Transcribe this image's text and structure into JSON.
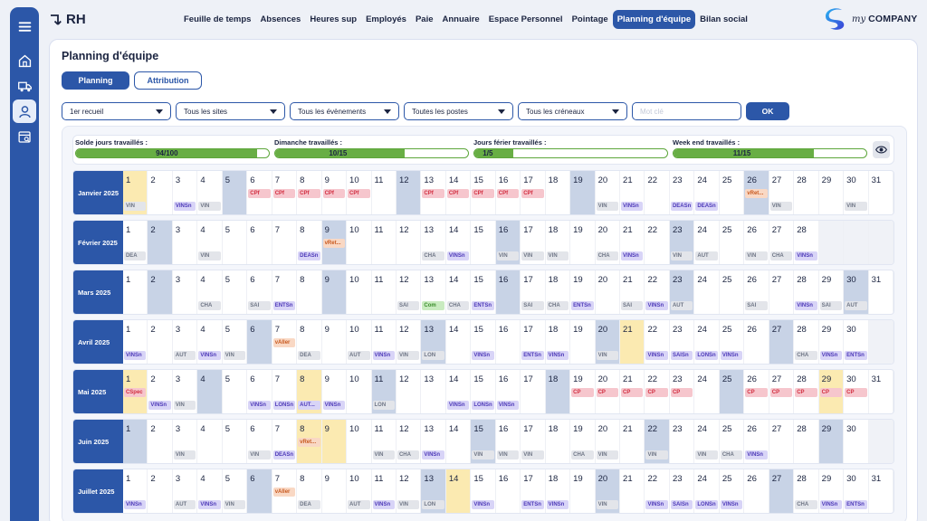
{
  "app": {
    "name": "RH"
  },
  "nav": [
    "Feuille de temps",
    "Absences",
    "Heures sup",
    "Employés",
    "Paie",
    "Annuaire",
    "Espace Personnel",
    "Pointage",
    "Planning d'équipe",
    "Bilan social"
  ],
  "nav_active": 8,
  "logo": {
    "my": "my",
    "company": "COMPANY"
  },
  "sidebar_icons": [
    "menu-icon",
    "home-icon",
    "truck-icon",
    "user-icon",
    "calendar-search-icon"
  ],
  "page": {
    "title": "Planning d'équipe"
  },
  "tabs": [
    {
      "label": "Planning",
      "active": true
    },
    {
      "label": "Attribution",
      "active": false
    }
  ],
  "filters": {
    "selects": [
      "1er recueil",
      "Tous les sites",
      "Tous les évènements",
      "Toutes les postes",
      "Tous les créneaux"
    ],
    "text_placeholder": "Mot clé",
    "ok_label": "OK"
  },
  "stats": [
    {
      "label": "Solde jours travaillés :",
      "value": "94/100",
      "fraction": 0.94
    },
    {
      "label": "Dimanche travaillés :",
      "value": "10/15",
      "fraction": 0.67
    },
    {
      "label": "Jours férier travaillés :",
      "value": "1/5",
      "fraction": 0.2
    },
    {
      "label": "Week end travaillés :",
      "value": "11/15",
      "fraction": 0.73
    }
  ],
  "badge_colors": {
    "cpf": "#d12c3e",
    "vret": "#c8591f",
    "grey": "#6e7585",
    "purple": "#4c38b8",
    "green": "#3a8d2b"
  },
  "months": [
    {
      "name": "Janvier 2025",
      "days": 31,
      "weekend": [
        5,
        12,
        19,
        26
      ],
      "holiday": [
        1
      ],
      "mid": [
        [
          6,
          "CPf",
          "cpf"
        ],
        [
          7,
          "CPf",
          "cpf"
        ],
        [
          8,
          "CPf",
          "cpf"
        ],
        [
          9,
          "CPf",
          "cpf"
        ],
        [
          10,
          "CPf",
          "cpf"
        ],
        [
          13,
          "CPf",
          "cpf"
        ],
        [
          14,
          "CPf",
          "cpf"
        ],
        [
          15,
          "CPf",
          "cpf"
        ],
        [
          16,
          "CPf",
          "cpf"
        ],
        [
          17,
          "CPf",
          "cpf"
        ],
        [
          26,
          "vRet...",
          "vret"
        ]
      ],
      "bot": [
        [
          1,
          "VIN",
          "grey"
        ],
        [
          3,
          "VINSn",
          "purple"
        ],
        [
          4,
          "VIN",
          "grey"
        ],
        [
          20,
          "VIN",
          "grey"
        ],
        [
          21,
          "VINSn",
          "purple"
        ],
        [
          23,
          "DEASn",
          "purple"
        ],
        [
          24,
          "DEASn",
          "purple"
        ],
        [
          27,
          "VIN",
          "grey"
        ],
        [
          30,
          "VIN",
          "grey"
        ]
      ]
    },
    {
      "name": "Février 2025",
      "days": 28,
      "weekend": [
        2,
        9,
        16,
        23
      ],
      "holiday": [],
      "mid": [
        [
          9,
          "vRet...",
          "vret"
        ]
      ],
      "bot": [
        [
          1,
          "DEA",
          "grey"
        ],
        [
          4,
          "VIN",
          "grey"
        ],
        [
          8,
          "DEASn",
          "purple"
        ],
        [
          13,
          "CHA",
          "grey"
        ],
        [
          14,
          "VINSn",
          "purple"
        ],
        [
          16,
          "VIN",
          "grey"
        ],
        [
          17,
          "VIN",
          "grey"
        ],
        [
          18,
          "VIN",
          "grey"
        ],
        [
          20,
          "CHA",
          "grey"
        ],
        [
          21,
          "VINSn",
          "purple"
        ],
        [
          23,
          "VIN",
          "grey"
        ],
        [
          24,
          "AUT",
          "grey"
        ],
        [
          26,
          "VIN",
          "grey"
        ],
        [
          27,
          "CHA",
          "grey"
        ],
        [
          28,
          "VINSn",
          "purple"
        ]
      ]
    },
    {
      "name": "Mars 2025",
      "days": 31,
      "weekend": [
        2,
        9,
        16,
        23,
        30
      ],
      "holiday": [],
      "mid": [],
      "bot": [
        [
          4,
          "CHA",
          "grey"
        ],
        [
          6,
          "SAI",
          "grey"
        ],
        [
          7,
          "ENTSn",
          "purple"
        ],
        [
          12,
          "SAI",
          "grey"
        ],
        [
          13,
          "Com",
          "green"
        ],
        [
          14,
          "CHA",
          "grey"
        ],
        [
          15,
          "ENTSn",
          "purple"
        ],
        [
          17,
          "SAI",
          "grey"
        ],
        [
          18,
          "CHA",
          "grey"
        ],
        [
          19,
          "ENTSn",
          "purple"
        ],
        [
          21,
          "SAI",
          "grey"
        ],
        [
          22,
          "VINSn",
          "purple"
        ],
        [
          23,
          "AUT",
          "grey"
        ],
        [
          26,
          "SAI",
          "grey"
        ],
        [
          28,
          "VINSn",
          "purple"
        ],
        [
          29,
          "SAI",
          "grey"
        ],
        [
          30,
          "AUT",
          "grey"
        ]
      ]
    },
    {
      "name": "Avril 2025",
      "days": 30,
      "weekend": [
        6,
        13,
        20,
        27
      ],
      "holiday": [
        21
      ],
      "mid": [
        [
          7,
          "vAller",
          "vret"
        ]
      ],
      "bot": [
        [
          1,
          "VINSn",
          "purple"
        ],
        [
          3,
          "AUT",
          "grey"
        ],
        [
          4,
          "VINSn",
          "purple"
        ],
        [
          5,
          "VIN",
          "grey"
        ],
        [
          8,
          "DEA",
          "grey"
        ],
        [
          10,
          "AUT",
          "grey"
        ],
        [
          11,
          "VINSn",
          "purple"
        ],
        [
          12,
          "VIN",
          "grey"
        ],
        [
          13,
          "LON",
          "grey"
        ],
        [
          15,
          "VINSn",
          "purple"
        ],
        [
          17,
          "ENTSn",
          "purple"
        ],
        [
          18,
          "VINSn",
          "purple"
        ],
        [
          20,
          "VIN",
          "grey"
        ],
        [
          22,
          "VINSn",
          "purple"
        ],
        [
          23,
          "SAISn",
          "purple"
        ],
        [
          24,
          "LONSn",
          "purple"
        ],
        [
          25,
          "VINSn",
          "purple"
        ],
        [
          28,
          "CHA",
          "grey"
        ],
        [
          29,
          "VINSn",
          "purple"
        ],
        [
          30,
          "ENTSn",
          "purple"
        ]
      ]
    },
    {
      "name": "Mai 2025",
      "days": 31,
      "weekend": [
        4,
        11,
        18,
        25
      ],
      "holiday": [
        1,
        8,
        29
      ],
      "mid": [
        [
          1,
          "CSpec",
          "cpf"
        ],
        [
          19,
          "CP",
          "cpf"
        ],
        [
          20,
          "CP",
          "cpf"
        ],
        [
          21,
          "CP",
          "cpf"
        ],
        [
          22,
          "CP",
          "cpf"
        ],
        [
          23,
          "CP",
          "cpf"
        ],
        [
          26,
          "CP",
          "cpf"
        ],
        [
          27,
          "CP",
          "cpf"
        ],
        [
          28,
          "CP",
          "cpf"
        ],
        [
          29,
          "CP",
          "cpf"
        ],
        [
          30,
          "CP",
          "cpf"
        ]
      ],
      "bot": [
        [
          2,
          "VINSn",
          "purple"
        ],
        [
          3,
          "VIN",
          "grey"
        ],
        [
          6,
          "VINSn",
          "purple"
        ],
        [
          7,
          "LONSn",
          "purple"
        ],
        [
          8,
          "AUT...",
          "purple"
        ],
        [
          9,
          "VINSn",
          "purple"
        ],
        [
          11,
          "LON",
          "grey"
        ],
        [
          14,
          "VINSn",
          "purple"
        ],
        [
          15,
          "LONSn",
          "purple"
        ],
        [
          16,
          "VINSn",
          "purple"
        ]
      ]
    },
    {
      "name": "Juin 2025",
      "days": 30,
      "weekend": [
        1,
        15,
        22,
        29
      ],
      "holiday": [
        8,
        9
      ],
      "mid": [
        [
          8,
          "vRet...",
          "vret"
        ]
      ],
      "bot": [
        [
          3,
          "VIN",
          "grey"
        ],
        [
          6,
          "VIN",
          "grey"
        ],
        [
          7,
          "DEASn",
          "purple"
        ],
        [
          11,
          "VIN",
          "grey"
        ],
        [
          12,
          "CHA",
          "grey"
        ],
        [
          13,
          "VINSn",
          "purple"
        ],
        [
          15,
          "VIN",
          "grey"
        ],
        [
          16,
          "VIN",
          "grey"
        ],
        [
          17,
          "VIN",
          "grey"
        ],
        [
          19,
          "CHA",
          "grey"
        ],
        [
          20,
          "VIN",
          "grey"
        ],
        [
          22,
          "VIN",
          "grey"
        ],
        [
          24,
          "VIN",
          "grey"
        ],
        [
          25,
          "CHA",
          "grey"
        ],
        [
          26,
          "VINSn",
          "purple"
        ]
      ]
    },
    {
      "name": "Juillet 2025",
      "days": 31,
      "weekend": [
        6,
        13,
        20,
        27
      ],
      "holiday": [
        14
      ],
      "mid": [
        [
          7,
          "vAller",
          "vret"
        ]
      ],
      "bot": [
        [
          1,
          "VINSn",
          "purple"
        ],
        [
          3,
          "AUT",
          "grey"
        ],
        [
          4,
          "VINSn",
          "purple"
        ],
        [
          5,
          "VIN",
          "grey"
        ],
        [
          8,
          "DEA",
          "grey"
        ],
        [
          10,
          "AUT",
          "grey"
        ],
        [
          11,
          "VINSn",
          "purple"
        ],
        [
          12,
          "VIN",
          "grey"
        ],
        [
          13,
          "LON",
          "grey"
        ],
        [
          15,
          "VINSn",
          "purple"
        ],
        [
          17,
          "ENTSn",
          "purple"
        ],
        [
          18,
          "VINSn",
          "purple"
        ],
        [
          20,
          "VIN",
          "grey"
        ],
        [
          22,
          "VINSn",
          "purple"
        ],
        [
          23,
          "SAISn",
          "purple"
        ],
        [
          24,
          "LONSn",
          "purple"
        ],
        [
          25,
          "VINSn",
          "purple"
        ],
        [
          28,
          "CHA",
          "grey"
        ],
        [
          29,
          "VINSn",
          "purple"
        ],
        [
          30,
          "ENTSn",
          "purple"
        ]
      ]
    }
  ]
}
